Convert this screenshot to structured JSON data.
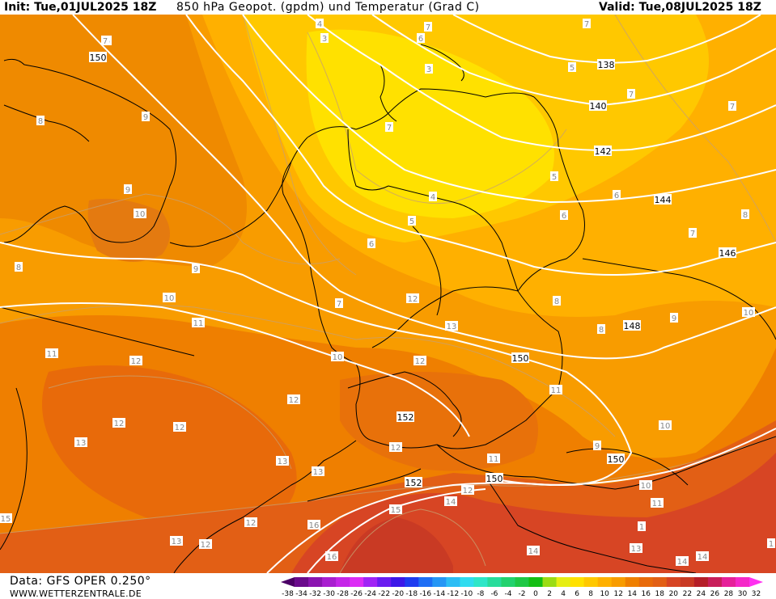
{
  "header": {
    "init": "Init: Tue,01JUL2025 18Z",
    "title": "850 hPa Geopot. (gpdm) und Temperatur (Grad C)",
    "valid": "Valid: Tue,08JUL2025 18Z"
  },
  "footer": {
    "data_source": "Data: GFS OPER 0.250°",
    "website": "WWW.WETTERZENTRALE.DE"
  },
  "colors": {
    "yellow": "#ffe100",
    "light_orange": "#ffb000",
    "orange": "#f89c00",
    "dark_orange": "#ef7f00",
    "red_orange": "#e25f15",
    "red": "#d74524",
    "deep_red": "#c93a24",
    "isohypse": "#ffffff",
    "isotherm": "#c8a070",
    "border": "#000000"
  },
  "colorbar": {
    "ticks": [
      "-38",
      "-34",
      "-32",
      "-30",
      "-28",
      "-26",
      "-24",
      "-22",
      "-20",
      "-18",
      "-16",
      "-14",
      "-12",
      "-10",
      "-8",
      "-6",
      "-4",
      "-2",
      "0",
      "2",
      "4",
      "6",
      "8",
      "10",
      "12",
      "14",
      "16",
      "18",
      "20",
      "22",
      "24",
      "26",
      "28",
      "30",
      "32"
    ],
    "colors": [
      "#4b0066",
      "#6a0a8c",
      "#8b14b0",
      "#a91ed0",
      "#c526e8",
      "#dc2cf5",
      "#a023f5",
      "#6a1cf0",
      "#3c18e8",
      "#1e3cf0",
      "#1e6ef5",
      "#2596f5",
      "#2cbdf5",
      "#30dcf0",
      "#2ee6c8",
      "#28dc9b",
      "#22d26e",
      "#1ec846",
      "#14be14",
      "#9bdc14",
      "#e6ee14",
      "#ffe100",
      "#ffc800",
      "#ffb000",
      "#f89c00",
      "#ef7f00",
      "#e86a0a",
      "#e25f15",
      "#d74524",
      "#c93a24",
      "#b51e28",
      "#c81e5a",
      "#e6209a",
      "#f528c8",
      "#ff30f0"
    ]
  },
  "isohypse_labels": [
    "150",
    "138",
    "140",
    "142",
    "144",
    "146",
    "148",
    "150",
    "152",
    "152",
    "150",
    "150"
  ],
  "temperature_labels": [
    "4",
    "3",
    "6",
    "7",
    "5",
    "5",
    "3",
    "7",
    "7",
    "7",
    "7",
    "8",
    "8",
    "8",
    "9",
    "9",
    "10",
    "4",
    "5",
    "6",
    "6",
    "7",
    "8",
    "6",
    "5",
    "7",
    "8",
    "9",
    "10",
    "10",
    "10",
    "11",
    "11",
    "11",
    "12",
    "12",
    "12",
    "12",
    "13",
    "12",
    "12",
    "13",
    "13",
    "12",
    "10",
    "9",
    "10",
    "11",
    "11",
    "12",
    "14",
    "15",
    "16",
    "16",
    "14",
    "13",
    "14",
    "13",
    "12",
    "1",
    "15",
    "14",
    "1",
    "7",
    "9",
    "12",
    "13"
  ]
}
